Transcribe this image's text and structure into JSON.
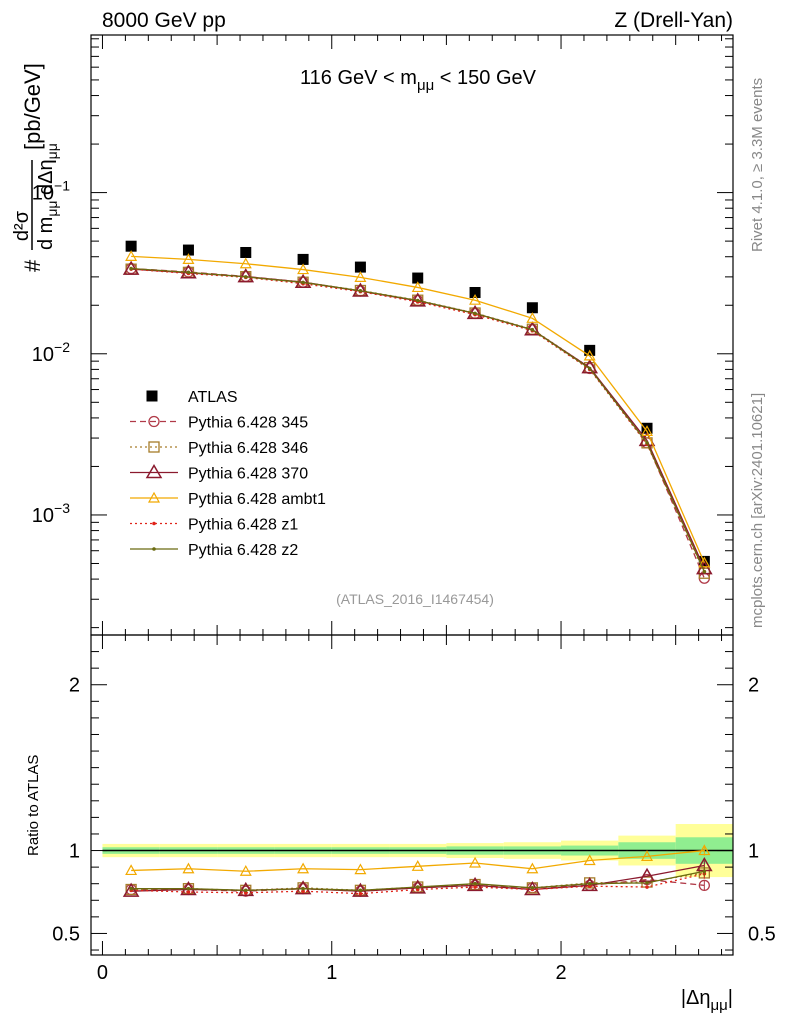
{
  "header": {
    "left": "8000 GeV pp",
    "right": "Z (Drell-Yan)"
  },
  "side_text": {
    "rivet": "Rivet 4.1.0, ≥ 3.3M events",
    "mcplots": "mcplots.cern.ch [arXiv:2401.10621]"
  },
  "colors": {
    "data": "#000000",
    "p345": "#b03a48",
    "p346": "#a67c2a",
    "p370": "#8b1a2e",
    "ambt1": "#f2a900",
    "z1": "#e0241a",
    "z2": "#6b6b10",
    "band_stat": "#90ee90",
    "band_syst": "#ffff99"
  },
  "chart_data": [
    {
      "type": "scatter",
      "panel": "main",
      "title": "116 GeV < mμμ < 150 GeV",
      "title_parts": {
        "pre": "116 GeV < m",
        "sub": "μμ",
        "post": " < 150 GeV"
      },
      "ylabel": "d²σ / (d mμμ dΔημμ) [pb/GeV]",
      "ylabel_parts": {
        "hash": "#",
        "num": "d²σ",
        "den_pre": "d m",
        "den_sub1": "μμ",
        "den_mid": " dΔη",
        "den_sub2": "μμ",
        "unit": "[pb/GeV]"
      },
      "yscale": "log",
      "ylim": [
        0.00018,
        0.95
      ],
      "xlim": [
        -0.05,
        2.75
      ],
      "yticks": [
        0.1,
        0.01,
        0.001
      ],
      "yticks_labels": [
        {
          "base": "10",
          "exp": "−1"
        },
        {
          "base": "10",
          "exp": "−2"
        },
        {
          "base": "10",
          "exp": "−3"
        }
      ],
      "x": [
        0.125,
        0.375,
        0.625,
        0.875,
        1.125,
        1.375,
        1.625,
        1.875,
        2.125,
        2.375,
        2.625
      ],
      "series": [
        {
          "name": "ATLAS",
          "key": "data",
          "values": [
            0.0465,
            0.044,
            0.0425,
            0.0385,
            0.0345,
            0.0295,
            0.024,
            0.0193,
            0.0105,
            0.00345,
            0.000515
          ]
        },
        {
          "name": "Pythia 6.428 345",
          "key": "p345",
          "values": [
            0.0338,
            0.0322,
            0.0302,
            0.0278,
            0.0245,
            0.0214,
            0.0178,
            0.0141,
            0.0081,
            0.0028,
            0.000405
          ]
        },
        {
          "name": "Pythia 6.428 346",
          "key": "p346",
          "values": [
            0.0335,
            0.032,
            0.0301,
            0.0278,
            0.0247,
            0.0215,
            0.0179,
            0.0142,
            0.0082,
            0.0028,
            0.000435
          ]
        },
        {
          "name": "Pythia 6.428 370",
          "key": "p370",
          "values": [
            0.0335,
            0.0318,
            0.0301,
            0.0278,
            0.0245,
            0.0213,
            0.0178,
            0.0141,
            0.0082,
            0.0029,
            0.000465
          ]
        },
        {
          "name": "Pythia 6.428 ambt1",
          "key": "ambt1",
          "values": [
            0.0402,
            0.0385,
            0.0362,
            0.0333,
            0.0298,
            0.0258,
            0.0215,
            0.0166,
            0.0097,
            0.0033,
            0.000505
          ]
        },
        {
          "name": "Pythia 6.428 z1",
          "key": "z1",
          "values": [
            0.0335,
            0.0315,
            0.0298,
            0.0272,
            0.0243,
            0.021,
            0.0175,
            0.0139,
            0.008,
            0.00275,
            0.000445
          ]
        },
        {
          "name": "Pythia 6.428 z2",
          "key": "z2",
          "values": [
            0.0338,
            0.032,
            0.03,
            0.0277,
            0.0246,
            0.0214,
            0.0178,
            0.0141,
            0.0081,
            0.0028,
            0.000445
          ]
        }
      ],
      "legend_position": "middle-left",
      "watermark": "(ATLAS_2016_I1467454)"
    },
    {
      "type": "line",
      "panel": "ratio",
      "ylabel": "Ratio to ATLAS",
      "xlabel": "|Δημμ|",
      "xlabel_parts": {
        "pre": "|Δη",
        "sub": "μμ",
        "post": "|"
      },
      "ylim": [
        0.37,
        2.3
      ],
      "xlim": [
        -0.05,
        2.75
      ],
      "yticks": [
        0.5,
        1,
        2
      ],
      "yticks_labels": [
        "0.5",
        "1",
        "2"
      ],
      "xticks": [
        0,
        1,
        2
      ],
      "xticks_labels": [
        "0",
        "1",
        "2"
      ],
      "reference_line": 1,
      "x": [
        0.125,
        0.375,
        0.625,
        0.875,
        1.125,
        1.375,
        1.625,
        1.875,
        2.125,
        2.375,
        2.625
      ],
      "x_edges": [
        0,
        0.25,
        0.5,
        0.75,
        1.0,
        1.25,
        1.5,
        1.75,
        2.0,
        2.25,
        2.5,
        2.75
      ],
      "band_stat": [
        0.02,
        0.02,
        0.02,
        0.02,
        0.02,
        0.02,
        0.025,
        0.025,
        0.03,
        0.05,
        0.08
      ],
      "band_total": [
        0.04,
        0.04,
        0.04,
        0.04,
        0.04,
        0.04,
        0.045,
        0.05,
        0.06,
        0.09,
        0.16
      ],
      "series": [
        {
          "name": "Pythia 6.428 345",
          "key": "p345",
          "values": [
            0.765,
            0.765,
            0.755,
            0.77,
            0.755,
            0.775,
            0.79,
            0.775,
            0.79,
            0.825,
            0.79
          ]
        },
        {
          "name": "Pythia 6.428 346",
          "key": "p346",
          "values": [
            0.765,
            0.77,
            0.76,
            0.775,
            0.76,
            0.78,
            0.795,
            0.775,
            0.805,
            0.81,
            0.865
          ]
        },
        {
          "name": "Pythia 6.428 370",
          "key": "p370",
          "values": [
            0.755,
            0.765,
            0.76,
            0.77,
            0.755,
            0.775,
            0.79,
            0.765,
            0.79,
            0.845,
            0.91
          ]
        },
        {
          "name": "Pythia 6.428 ambt1",
          "key": "ambt1",
          "values": [
            0.88,
            0.89,
            0.875,
            0.89,
            0.885,
            0.905,
            0.925,
            0.89,
            0.94,
            0.965,
            1.0
          ]
        },
        {
          "name": "Pythia 6.428 z1",
          "key": "z1",
          "values": [
            0.76,
            0.75,
            0.745,
            0.755,
            0.74,
            0.765,
            0.78,
            0.765,
            0.785,
            0.78,
            0.86
          ]
        },
        {
          "name": "Pythia 6.428 z2",
          "key": "z2",
          "values": [
            0.77,
            0.77,
            0.76,
            0.77,
            0.76,
            0.78,
            0.8,
            0.775,
            0.8,
            0.805,
            0.875
          ]
        }
      ]
    }
  ]
}
